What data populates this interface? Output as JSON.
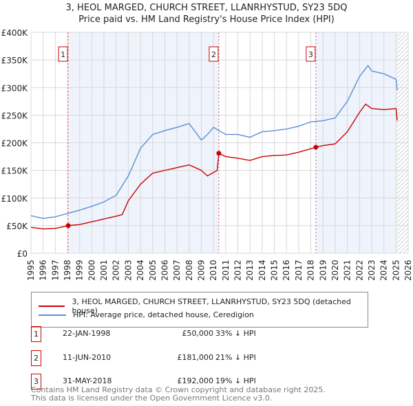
{
  "title": "3, HEOL MARGED, CHURCH STREET, LLANRHYSTUD, SY23 5DQ",
  "subtitle": "Price paid vs. HM Land Registry's House Price Index (HPI)",
  "chart_data": {
    "type": "line",
    "xlim": [
      1995,
      2026
    ],
    "ylim": [
      0,
      400000
    ],
    "yticks": [
      0,
      50000,
      100000,
      150000,
      200000,
      250000,
      300000,
      350000,
      400000
    ],
    "ytick_labels": [
      "£0",
      "£50K",
      "£100K",
      "£150K",
      "£200K",
      "£250K",
      "£300K",
      "£350K",
      "£400K"
    ],
    "xticks": [
      "1995",
      "1996",
      "1997",
      "1998",
      "1999",
      "2000",
      "2001",
      "2002",
      "2003",
      "2004",
      "2005",
      "2006",
      "2007",
      "2008",
      "2009",
      "2010",
      "2011",
      "2012",
      "2013",
      "2014",
      "2015",
      "2016",
      "2017",
      "2018",
      "2019",
      "2020",
      "2021",
      "2022",
      "2023",
      "2024",
      "2025",
      "2026"
    ],
    "series": [
      {
        "name": "3, HEOL MARGED, CHURCH STREET, LLANRHYSTUD, SY23 5DQ (detached house)",
        "color": "#cc0000",
        "x": [
          1995,
          1996,
          1997,
          1998.06,
          1999,
          2000,
          2001,
          2002,
          2002.5,
          2003,
          2004,
          2005,
          2006,
          2007,
          2008,
          2009,
          2009.5,
          2010.3,
          2010.44,
          2011,
          2012,
          2013,
          2014,
          2015,
          2016,
          2017,
          2018.41,
          2019,
          2020,
          2021,
          2022,
          2022.5,
          2023,
          2024,
          2025,
          2025.1
        ],
        "y": [
          47000,
          44000,
          45000,
          50000,
          52000,
          57000,
          62000,
          67000,
          70000,
          95000,
          125000,
          145000,
          150000,
          155000,
          160000,
          150000,
          140000,
          150000,
          181000,
          175000,
          172000,
          168000,
          175000,
          177000,
          178000,
          183000,
          192000,
          195000,
          198000,
          220000,
          255000,
          270000,
          262000,
          260000,
          262000,
          240000
        ]
      },
      {
        "name": "HPI: Average price, detached house, Ceredigion",
        "color": "#5b8ed6",
        "x": [
          1995,
          1996,
          1997,
          1998,
          1999,
          2000,
          2001,
          2002,
          2003,
          2004,
          2005,
          2006,
          2007,
          2008,
          2009,
          2009.5,
          2010,
          2011,
          2012,
          2013,
          2014,
          2015,
          2016,
          2017,
          2018,
          2019,
          2020,
          2021,
          2022,
          2022.7,
          2023,
          2024,
          2025,
          2025.1
        ],
        "y": [
          68000,
          63000,
          66000,
          72000,
          78000,
          85000,
          93000,
          105000,
          140000,
          190000,
          215000,
          222000,
          228000,
          235000,
          205000,
          215000,
          228000,
          215000,
          215000,
          210000,
          220000,
          222000,
          225000,
          230000,
          238000,
          240000,
          245000,
          275000,
          320000,
          340000,
          330000,
          325000,
          315000,
          295000
        ]
      }
    ],
    "sales": [
      {
        "label": "1",
        "x": 1998.06,
        "price": 50000
      },
      {
        "label": "2",
        "x": 2010.44,
        "price": 181000
      },
      {
        "label": "3",
        "x": 2018.41,
        "price": 192000
      }
    ],
    "shaded": [
      [
        1998.06,
        2010.44
      ],
      [
        2018.41,
        2025.1
      ]
    ],
    "hatched_from": 2025.1
  },
  "legend": {
    "property": "3, HEOL MARGED, CHURCH STREET, LLANRHYSTUD, SY23 5DQ (detached house)",
    "hpi": "HPI: Average price, detached house, Ceredigion"
  },
  "transactions": [
    {
      "num": "1",
      "date": "22-JAN-1998",
      "price": "£50,000",
      "diff": "33% ↓ HPI"
    },
    {
      "num": "2",
      "date": "11-JUN-2010",
      "price": "£181,000",
      "diff": "21% ↓ HPI"
    },
    {
      "num": "3",
      "date": "31-MAY-2018",
      "price": "£192,000",
      "diff": "19% ↓ HPI"
    }
  ],
  "footer": [
    "Contains HM Land Registry data © Crown copyright and database right 2025.",
    "This data is licensed under the Open Government Licence v3.0."
  ]
}
